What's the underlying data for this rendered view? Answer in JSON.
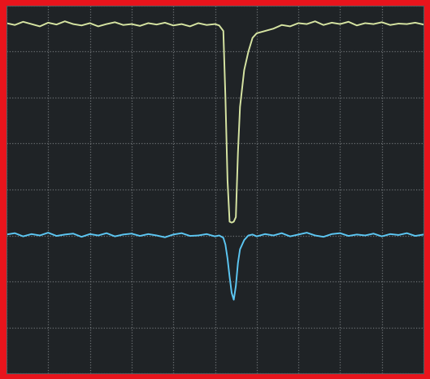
{
  "chart_data": {
    "type": "line",
    "x": [
      0,
      0.2,
      0.4,
      0.6,
      0.8,
      1.0,
      1.2,
      1.4,
      1.6,
      1.8,
      2.0,
      2.2,
      2.4,
      2.6,
      2.8,
      3.0,
      3.2,
      3.4,
      3.6,
      3.8,
      4.0,
      4.2,
      4.4,
      4.6,
      4.8,
      5.0,
      5.1,
      5.2,
      5.25,
      5.3,
      5.35,
      5.4,
      5.45,
      5.5,
      5.55,
      5.6,
      5.7,
      5.8,
      5.9,
      6.0,
      6.2,
      6.4,
      6.6,
      6.8,
      7.0,
      7.2,
      7.4,
      7.6,
      7.8,
      8.0,
      8.2,
      8.4,
      8.6,
      8.8,
      9.0,
      9.2,
      9.4,
      9.6,
      9.8,
      10.0
    ],
    "series": [
      {
        "color": "#d6e4a2",
        "values": [
          7.62,
          7.58,
          7.65,
          7.6,
          7.55,
          7.63,
          7.59,
          7.66,
          7.6,
          7.57,
          7.62,
          7.55,
          7.6,
          7.64,
          7.58,
          7.6,
          7.56,
          7.62,
          7.59,
          7.63,
          7.57,
          7.6,
          7.55,
          7.62,
          7.58,
          7.6,
          7.57,
          7.45,
          6.0,
          4.2,
          3.3,
          3.28,
          3.3,
          3.4,
          4.8,
          5.8,
          6.6,
          7.0,
          7.3,
          7.4,
          7.45,
          7.5,
          7.58,
          7.55,
          7.62,
          7.6,
          7.66,
          7.58,
          7.63,
          7.6,
          7.65,
          7.57,
          7.62,
          7.6,
          7.64,
          7.58,
          7.61,
          7.6,
          7.63,
          7.59
        ]
      },
      {
        "color": "#5cc6f2",
        "values": [
          3.02,
          3.05,
          2.98,
          3.03,
          3.0,
          3.06,
          2.99,
          3.02,
          3.04,
          2.97,
          3.03,
          3.0,
          3.05,
          2.98,
          3.02,
          3.04,
          2.99,
          3.03,
          3.0,
          2.96,
          3.02,
          3.05,
          2.99,
          3.0,
          3.03,
          2.98,
          3.0,
          2.95,
          2.8,
          2.5,
          2.1,
          1.75,
          1.6,
          1.9,
          2.4,
          2.7,
          2.9,
          3.0,
          3.02,
          2.98,
          3.03,
          3.0,
          3.05,
          2.98,
          3.02,
          3.06,
          3.0,
          2.97,
          3.03,
          3.05,
          2.99,
          3.02,
          3.0,
          3.04,
          2.98,
          3.03,
          3.01,
          3.05,
          2.99,
          3.02
        ]
      }
    ],
    "xlim": [
      0,
      10
    ],
    "xticks": [
      0,
      1,
      2,
      3,
      4,
      5,
      6,
      7,
      8,
      9,
      10
    ],
    "ylim": [
      0,
      8
    ],
    "yticks": [
      0,
      1,
      2,
      3,
      4,
      5,
      6,
      7,
      8
    ],
    "grid": true,
    "tick_labels": false
  }
}
